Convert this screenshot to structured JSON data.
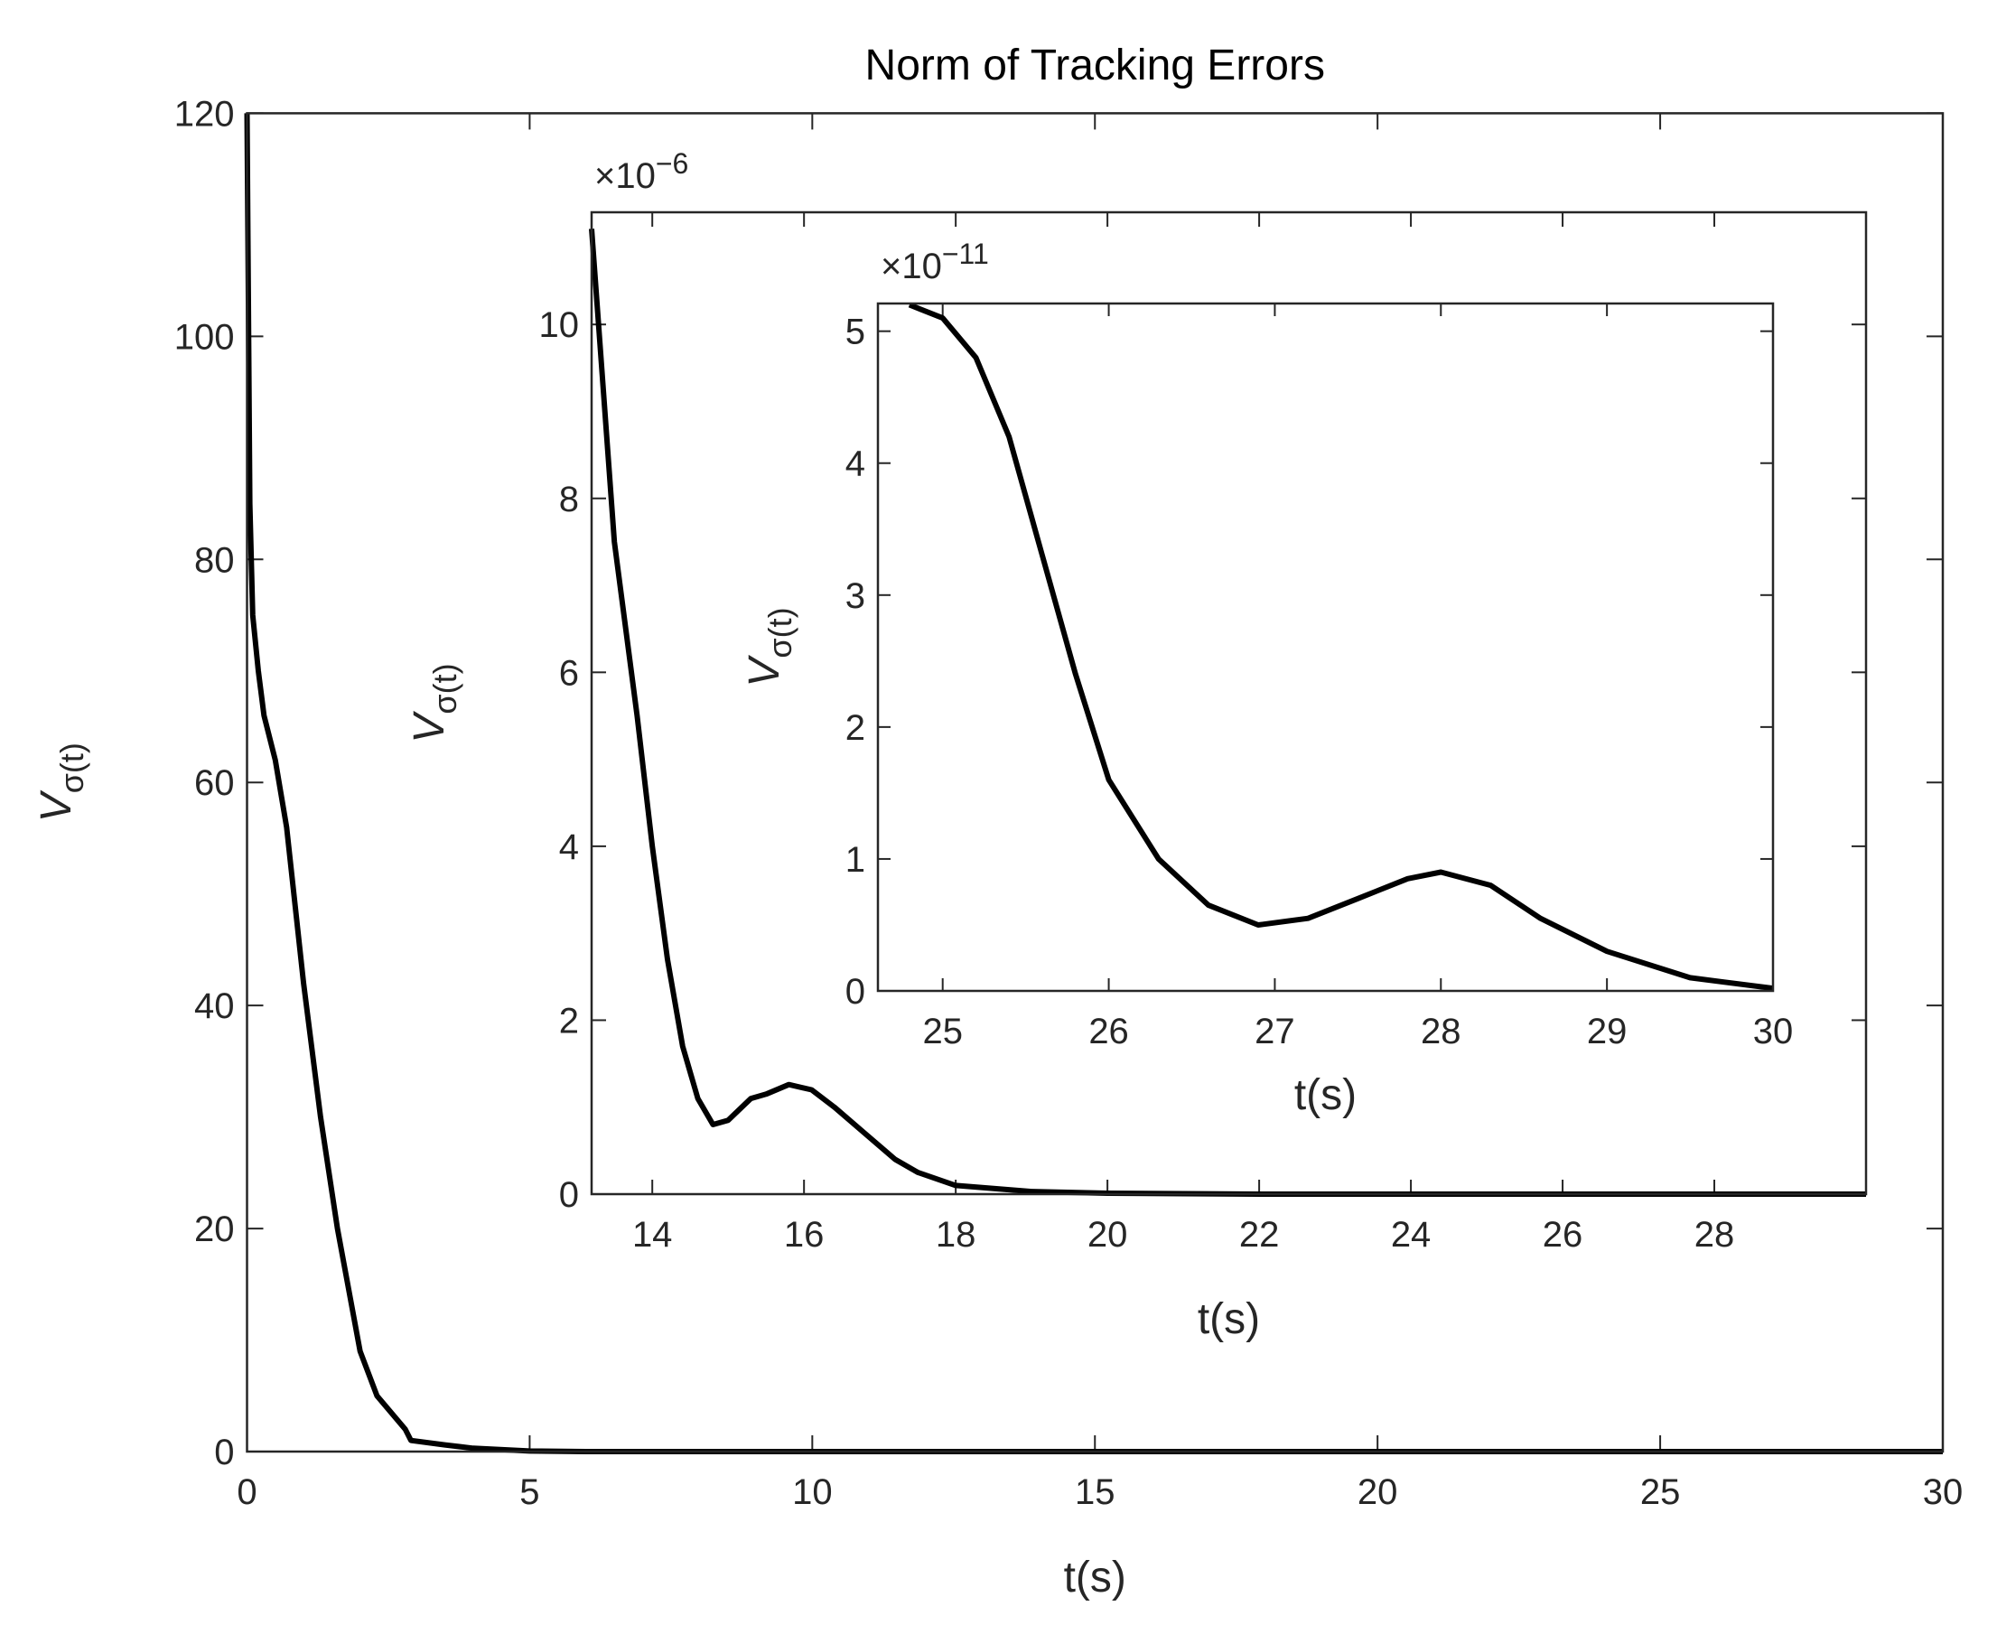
{
  "chart_data": [
    {
      "type": "line",
      "title": "Norm of Tracking Errors",
      "xlabel": "t(s)",
      "ylabel": "V",
      "ylabel_sub": "σ(t)",
      "color": "#000000",
      "x": [
        0,
        0.05,
        0.1,
        0.2,
        0.3,
        0.5,
        0.7,
        1,
        1.3,
        1.6,
        2,
        2.3,
        2.8,
        2.9,
        3.5,
        4,
        5,
        6,
        30
      ],
      "values": [
        120,
        85,
        75,
        70,
        66,
        62,
        56,
        42,
        30,
        20,
        9,
        5,
        2,
        1,
        0.6,
        0.3,
        0.05,
        0,
        0
      ],
      "xlim": [
        0,
        30
      ],
      "ylim": [
        0,
        120
      ],
      "xticks": [
        0,
        5,
        10,
        15,
        20,
        25,
        30
      ],
      "yticks": [
        0,
        20,
        40,
        60,
        80,
        100,
        120
      ]
    },
    {
      "type": "line",
      "xlabel": "t(s)",
      "ylabel": "V",
      "ylabel_sub": "σ(t)",
      "exponent_base": "×10",
      "exponent": "−6",
      "color": "#000000",
      "x": [
        13.2,
        13.5,
        13.8,
        14,
        14.2,
        14.4,
        14.6,
        14.8,
        15,
        15.3,
        15.5,
        15.8,
        16.1,
        16.4,
        16.8,
        17.2,
        17.5,
        18,
        19,
        20,
        22,
        30
      ],
      "values": [
        11.1,
        7.5,
        5.5,
        4,
        2.7,
        1.7,
        1.1,
        0.8,
        0.85,
        1.1,
        1.15,
        1.26,
        1.2,
        1.0,
        0.7,
        0.4,
        0.25,
        0.1,
        0.03,
        0.01,
        0,
        0
      ],
      "xlim": [
        13.2,
        30
      ],
      "ylim": [
        0,
        11.29
      ],
      "xticks": [
        14,
        16,
        18,
        20,
        22,
        24,
        26,
        28
      ],
      "yticks": [
        0,
        2,
        4,
        6,
        8,
        10
      ]
    },
    {
      "type": "line",
      "xlabel": "t(s)",
      "ylabel": "V",
      "ylabel_sub": "σ(t)",
      "exponent_base": "×10",
      "exponent": "−11",
      "color": "#000000",
      "x": [
        24.8,
        25,
        25.2,
        25.4,
        25.6,
        25.8,
        26,
        26.3,
        26.6,
        26.9,
        27.2,
        27.5,
        27.8,
        28,
        28.3,
        28.6,
        29,
        29.5,
        30
      ],
      "values": [
        5.2,
        5.1,
        4.8,
        4.2,
        3.3,
        2.4,
        1.6,
        1.0,
        0.65,
        0.5,
        0.55,
        0.7,
        0.85,
        0.9,
        0.8,
        0.55,
        0.3,
        0.1,
        0.02
      ],
      "xlim": [
        24.61,
        30
      ],
      "ylim": [
        0,
        5.21
      ],
      "xticks": [
        25,
        26,
        27,
        28,
        29,
        30
      ],
      "yticks": [
        0,
        1,
        2,
        3,
        4,
        5
      ]
    }
  ]
}
